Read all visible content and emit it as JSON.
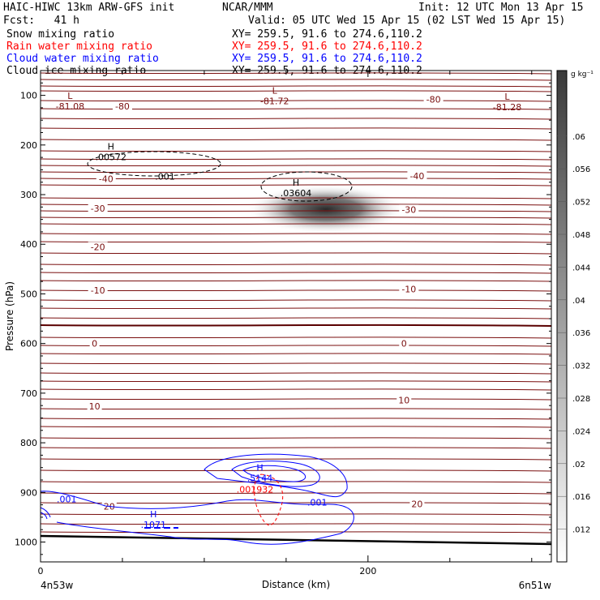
{
  "header": {
    "left_title": "HAIC-HIWC 13km ARW-GFS init",
    "org": "NCAR/MMM",
    "init": "Init: 12 UTC Mon 13 Apr 15",
    "fcst": "Fcst:   41 h",
    "valid": "Valid: 05 UTC Wed 15 Apr 15 (02 LST Wed 15 Apr 15)"
  },
  "fields": [
    {
      "name": "Snow mixing ratio",
      "xy": "XY= 259.5, 91.6 to 274.6,110.2",
      "color": "#000000"
    },
    {
      "name": "Rain water mixing ratio",
      "xy": "XY= 259.5, 91.6 to 274.6,110.2",
      "color": "#ff0000"
    },
    {
      "name": "Cloud water mixing ratio",
      "xy": "XY= 259.5, 91.6 to 274.6,110.2",
      "color": "#0000ff"
    },
    {
      "name": "Cloud ice mixing ratio",
      "xy": "XY= 259.5, 91.6 to 274.6,110.2",
      "color": "#000000"
    }
  ],
  "chart_data": {
    "type": "contour cross-section",
    "ylabel": "Pressure (hPa)",
    "xlabel": "Distance (km)",
    "x_range": [
      0,
      312
    ],
    "y_range": [
      1040,
      50
    ],
    "x_ticks": [
      0,
      200
    ],
    "y_ticks": [
      100,
      200,
      300,
      400,
      500,
      600,
      700,
      800,
      900,
      1000
    ],
    "x_end_labels": [
      "4n53w",
      "6n51w"
    ],
    "colorbar": {
      "unit": "g kg⁻¹",
      "ticks": [
        ".012",
        ".016",
        ".02",
        ".024",
        ".028",
        ".032",
        ".036",
        ".04",
        ".044",
        ".048",
        ".052",
        ".056",
        ".06"
      ],
      "min": 0.008,
      "max": 0.068
    },
    "temperature_contour_labels": [
      {
        "text": "-80",
        "x": 50,
        "p": 122
      },
      {
        "text": "-80",
        "x": 240,
        "p": 108
      },
      {
        "text": "-40",
        "x": 40,
        "p": 268
      },
      {
        "text": "-40",
        "x": 230,
        "p": 262
      },
      {
        "text": "-30",
        "x": 35,
        "p": 328
      },
      {
        "text": "-30",
        "x": 225,
        "p": 330
      },
      {
        "text": "-20",
        "x": 35,
        "p": 405
      },
      {
        "text": "-10",
        "x": 35,
        "p": 493
      },
      {
        "text": "-10",
        "x": 225,
        "p": 490
      },
      {
        "text": "0",
        "x": 33,
        "p": 600
      },
      {
        "text": "0",
        "x": 222,
        "p": 600
      },
      {
        "text": "10",
        "x": 33,
        "p": 726
      },
      {
        "text": "10",
        "x": 222,
        "p": 714
      },
      {
        "text": "20",
        "x": 42,
        "p": 928
      },
      {
        "text": "20",
        "x": 230,
        "p": 923
      }
    ],
    "extrema": [
      {
        "kind": "L",
        "value": "-81.08",
        "x": 18,
        "p": 120
      },
      {
        "kind": "L",
        "value": "-81.72",
        "x": 143,
        "p": 110
      },
      {
        "kind": "L",
        "value": "-81.28",
        "x": 285,
        "p": 122
      },
      {
        "kind": "H",
        "value": ".00572",
        "x": 43,
        "p": 222
      },
      {
        "kind": "H",
        "value": ".03604",
        "x": 156,
        "p": 295
      },
      {
        "kind": "H",
        "value": ".5144",
        "x": 134,
        "p": 869
      },
      {
        "kind": "H",
        "value": ".001932",
        "x": 131,
        "p": 892
      },
      {
        "kind": "H",
        "value": ".1071",
        "x": 69,
        "p": 963
      }
    ],
    "contour_labels": [
      {
        "text": ".001",
        "x": 76,
        "p": 263,
        "color": "#000000"
      },
      {
        "text": ".001",
        "x": 16,
        "p": 913,
        "color": "#0000ff"
      },
      {
        "text": ".001",
        "x": 169,
        "p": 920,
        "color": "#0000ff"
      }
    ]
  }
}
